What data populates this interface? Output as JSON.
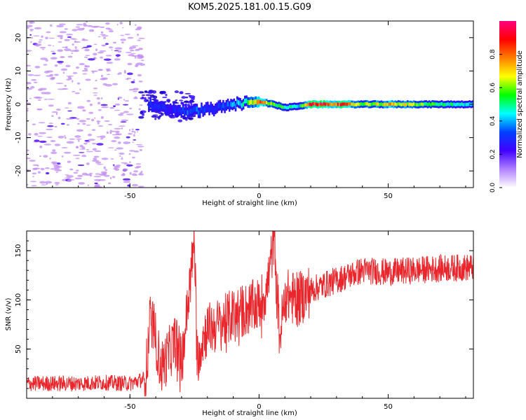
{
  "title": "KOM5.2025.181.00.15.G09",
  "colors": {
    "snr_line": "#e8262c",
    "noise_dots": "#c08cf0",
    "frame": "#000000"
  },
  "chart_data": [
    {
      "type": "heatmap",
      "xlabel": "Height of straight line (km)",
      "ylabel": "Frequency (Hz)",
      "xlim": [
        -90,
        83
      ],
      "ylim": [
        -25,
        25
      ],
      "xticks": [
        -50,
        0,
        50
      ],
      "yticks": [
        -20,
        -10,
        0,
        10,
        20
      ],
      "colorbar": {
        "label": "Normalized spectral amplitude",
        "range": [
          0,
          1
        ],
        "ticks": [
          "0.0",
          "0.2",
          "0.4",
          "0.6",
          "0.8"
        ],
        "colormap": [
          "#ffffff",
          "#b080ff",
          "#4000ff",
          "#0040ff",
          "#00ffff",
          "#00ff00",
          "#ffff00",
          "#ff8000",
          "#ff0000",
          "#ff0080"
        ]
      },
      "signal_track": {
        "x": [
          -43,
          -40,
          -35,
          -30,
          -25,
          -20,
          -15,
          -10,
          -5,
          0,
          5,
          10,
          15,
          20,
          30,
          40,
          50,
          60,
          70,
          83
        ],
        "freq": [
          0.0,
          -1.0,
          -1.5,
          -2.0,
          -2.0,
          -1.5,
          -1.0,
          0.0,
          0.5,
          0.8,
          0.0,
          -1.0,
          -0.5,
          0.0,
          0.0,
          0.0,
          0.0,
          0.0,
          0.0,
          0.0
        ],
        "amplitude": [
          0.3,
          0.3,
          0.25,
          0.3,
          0.35,
          0.3,
          0.3,
          0.4,
          0.5,
          0.8,
          0.6,
          0.5,
          0.4,
          0.9,
          0.85,
          0.6,
          0.7,
          0.6,
          0.5,
          0.4
        ]
      },
      "noise_region_x": [
        -90,
        -45
      ]
    },
    {
      "type": "line",
      "xlabel": "Height of straight line (km)",
      "ylabel": "SNR (v/v)",
      "xlim": [
        -90,
        83
      ],
      "ylim": [
        0,
        170
      ],
      "xticks": [
        -50,
        0,
        50
      ],
      "yticks": [
        50,
        100,
        150
      ],
      "series": [
        {
          "x": [
            -90,
            -80,
            -70,
            -60,
            -50,
            -44,
            -42,
            -40,
            -38,
            -35,
            -32,
            -30,
            -25,
            -24,
            -22,
            -20,
            -15,
            -10,
            -5,
            0,
            3,
            6,
            8,
            10,
            15,
            20,
            30,
            40,
            50,
            60,
            70,
            83
          ],
          "values": [
            15,
            15,
            15,
            16,
            15,
            20,
            85,
            60,
            30,
            45,
            60,
            35,
            160,
            40,
            60,
            70,
            75,
            85,
            90,
            95,
            110,
            165,
            60,
            105,
            100,
            110,
            120,
            130,
            128,
            130,
            132,
            133
          ]
        }
      ]
    }
  ]
}
